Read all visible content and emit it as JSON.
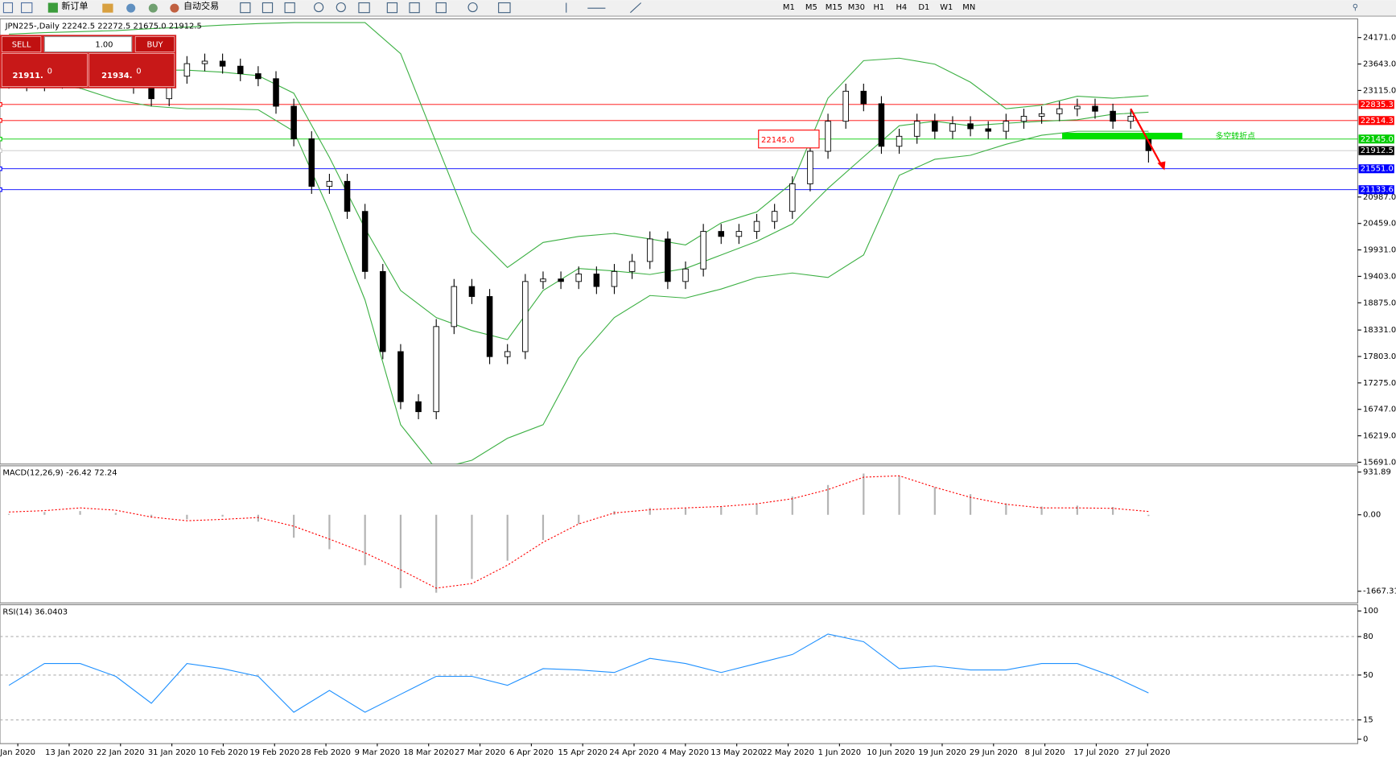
{
  "toolbar": {
    "new_order": "新订单",
    "auto_trading": "自动交易",
    "timeframes": [
      "M1",
      "M5",
      "M15",
      "M30",
      "H1",
      "H4",
      "D1",
      "W1",
      "MN"
    ]
  },
  "chart_header": "JPN225-,Daily  22242.5 22272.5 21675.0 21912.5",
  "trade_panel": {
    "sell": "SELL",
    "buy": "BUY",
    "lots": "1.00",
    "sell_main": "21911.",
    "sell_tail": "0",
    "buy_main": "21934.",
    "buy_tail": "0"
  },
  "price_chart": {
    "ylim": [
      15673,
      24527
    ],
    "yticks": [
      {
        "value": 24171,
        "label": "24171.0"
      },
      {
        "value": 23643,
        "label": "23643.0"
      },
      {
        "value": 23115,
        "label": "23115.0"
      },
      {
        "value": 20987,
        "label": "20987.0"
      },
      {
        "value": 20459,
        "label": "20459.0"
      },
      {
        "value": 19931,
        "label": "19931.0"
      },
      {
        "value": 19403,
        "label": "19403.0"
      },
      {
        "value": 18875,
        "label": "18875.0"
      },
      {
        "value": 18331,
        "label": "18331.0"
      },
      {
        "value": 17803,
        "label": "17803.0"
      },
      {
        "value": 17275,
        "label": "17275.0"
      },
      {
        "value": 16747,
        "label": "16747.0"
      },
      {
        "value": 16219,
        "label": "16219.0"
      },
      {
        "value": 15691,
        "label": "15691.0"
      }
    ],
    "levels": [
      {
        "value": 22835.3,
        "label": "22835.3",
        "color": "#ff0000",
        "line_color": "#ff0000"
      },
      {
        "value": 22514.3,
        "label": "22514.3",
        "color": "#ff0000",
        "line_color": "#ff0000"
      },
      {
        "value": 22145,
        "label": "22145.0",
        "color": "#00cc00",
        "line_color": "#00cc00"
      },
      {
        "value": 21912.5,
        "label": "21912.5",
        "color": "#000000",
        "line_color": "#c8c8c8"
      },
      {
        "value": 21551,
        "label": "21551.0",
        "color": "#0000ff",
        "line_color": "#0000ff"
      },
      {
        "value": 21133.6,
        "label": "21133.6",
        "color": "#0000ff",
        "line_color": "#0000ff"
      }
    ],
    "candles": {
      "open": [
        23350,
        23300,
        23250,
        23350,
        23300,
        23400,
        23450,
        23350,
        23200,
        22950,
        23400,
        23650,
        23700,
        23600,
        23450,
        23350,
        22800,
        22150,
        21200,
        21300,
        20700,
        19500,
        17900,
        16900,
        16700,
        18400,
        19200,
        19000,
        17800,
        17900,
        19300,
        19350,
        19300,
        19450,
        19200,
        19500,
        19700,
        20150,
        19300,
        19550,
        20300,
        20200,
        20300,
        20500,
        20700,
        21250,
        21900,
        22500,
        23100,
        22850,
        22000,
        22200,
        22500,
        22300,
        22450,
        22350,
        22300,
        22500,
        22600,
        22650,
        22750,
        22800,
        22700,
        22500,
        22242.5
      ],
      "high": [
        23500,
        23450,
        23500,
        23500,
        23550,
        23600,
        23600,
        23500,
        23350,
        23550,
        23800,
        23850,
        23850,
        23750,
        23600,
        23500,
        22950,
        22300,
        21450,
        21450,
        20850,
        19650,
        18050,
        17050,
        18550,
        19350,
        19350,
        19150,
        18050,
        19450,
        19500,
        19500,
        19600,
        19600,
        19650,
        19850,
        20300,
        20300,
        19700,
        20450,
        20450,
        20450,
        20650,
        20850,
        21400,
        22050,
        22650,
        23250,
        23250,
        23000,
        22350,
        22650,
        22650,
        22600,
        22600,
        22500,
        22650,
        22750,
        22800,
        22900,
        22950,
        22950,
        22850,
        22750,
        22272.5
      ],
      "low": [
        23150,
        23100,
        23100,
        23150,
        23150,
        23250,
        23200,
        23050,
        22800,
        22800,
        23250,
        23500,
        23450,
        23300,
        23200,
        22650,
        22000,
        21050,
        21050,
        20550,
        19350,
        17750,
        16750,
        16550,
        16550,
        18250,
        18850,
        17650,
        17650,
        17750,
        19150,
        19150,
        19150,
        19050,
        19050,
        19350,
        19550,
        19150,
        19150,
        19400,
        20050,
        20050,
        20150,
        20350,
        20550,
        21100,
        21750,
        22350,
        22700,
        21850,
        21850,
        22050,
        22150,
        22150,
        22200,
        22150,
        22150,
        22350,
        22450,
        22500,
        22600,
        22550,
        22350,
        22350,
        21675
      ],
      "close": [
        23300,
        23250,
        23350,
        23300,
        23400,
        23450,
        23350,
        23200,
        22950,
        23400,
        23650,
        23700,
        23600,
        23450,
        23350,
        22800,
        22150,
        21200,
        21300,
        20700,
        19500,
        17900,
        16900,
        16700,
        18400,
        19200,
        19000,
        17800,
        17900,
        19300,
        19350,
        19300,
        19450,
        19200,
        19500,
        19700,
        20150,
        19300,
        19550,
        20300,
        20200,
        20300,
        20500,
        20700,
        21250,
        21900,
        22500,
        23100,
        22850,
        22000,
        22200,
        22500,
        22300,
        22450,
        22350,
        22300,
        22500,
        22600,
        22650,
        22750,
        22800,
        22700,
        22500,
        22600,
        21912.5
      ]
    },
    "bands": {
      "color": "#3cb043",
      "upper": [
        24240,
        24270,
        24290,
        24310,
        24350,
        24380,
        24420,
        24450,
        24470,
        24470,
        24470,
        23850,
        22070,
        20290,
        19580,
        20080,
        20200,
        20260,
        20150,
        20030,
        20470,
        20690,
        21270,
        22960,
        23710,
        23760,
        23640,
        23280,
        22750,
        22820,
        23000,
        22960,
        23010
      ],
      "middle": [
        23640,
        23600,
        23590,
        23550,
        23520,
        23520,
        23480,
        23410,
        23060,
        21780,
        20360,
        19120,
        18580,
        18320,
        18140,
        19120,
        19560,
        19510,
        19440,
        19560,
        19830,
        20100,
        20450,
        21160,
        21790,
        22410,
        22500,
        22410,
        22460,
        22500,
        22530,
        22640,
        22680
      ],
      "lower": [
        23290,
        23230,
        23160,
        22930,
        22800,
        22750,
        22750,
        22730,
        22300,
        20700,
        18930,
        16440,
        15550,
        15730,
        16170,
        16440,
        17770,
        18580,
        19020,
        18970,
        19150,
        19380,
        19470,
        19380,
        19830,
        21420,
        21740,
        21820,
        22040,
        22220,
        22300,
        22300,
        22300
      ]
    },
    "annotation": {
      "label": "22145.0",
      "value": 22145
    },
    "note": "多空转折点"
  },
  "macd": {
    "label": "MACD(12,26,9) -26.42 72.24",
    "ylim": [
      -1903,
      1029
    ],
    "yticks": [
      931.89,
      {
        "value": 0,
        "label": "0.00"
      },
      -1667.31
    ],
    "histogram": [
      20,
      60,
      80,
      40,
      -60,
      -100,
      -40,
      -150,
      -500,
      -750,
      -1100,
      -1600,
      -1700,
      -1400,
      -1000,
      -550,
      -200,
      80,
      150,
      140,
      170,
      230,
      400,
      650,
      900,
      850,
      600,
      450,
      250,
      180,
      200,
      170,
      -26.42
    ],
    "signal": [
      60,
      90,
      150,
      100,
      -50,
      -130,
      -100,
      -60,
      -250,
      -530,
      -830,
      -1200,
      -1600,
      -1500,
      -1100,
      -600,
      -200,
      40,
      110,
      150,
      180,
      240,
      350,
      550,
      820,
      850,
      600,
      380,
      230,
      150,
      150,
      140,
      72.24
    ],
    "histogram_color": "#b4b4b4",
    "signal_color": "#ff0000"
  },
  "rsi": {
    "label": "RSI(14) 36.0403",
    "ylim": [
      0,
      100
    ],
    "yticks": [
      100,
      80,
      50,
      15,
      0
    ],
    "levels": [
      80,
      50,
      15
    ],
    "values": [
      42,
      59,
      59,
      49,
      28,
      59,
      55,
      49,
      21,
      38,
      21,
      35,
      49,
      49,
      42,
      55,
      54,
      52,
      63,
      59,
      52,
      59,
      66,
      82,
      76,
      55,
      57,
      54,
      54,
      59,
      59,
      49,
      36.0403
    ],
    "color": "#1e90ff"
  },
  "dates": [
    "Jan 2020",
    "13 Jan 2020",
    "22 Jan 2020",
    "31 Jan 2020",
    "10 Feb 2020",
    "19 Feb 2020",
    "28 Feb 2020",
    "9 Mar 2020",
    "18 Mar 2020",
    "27 Mar 2020",
    "6 Apr 2020",
    "15 Apr 2020",
    "24 Apr 2020",
    "4 May 2020",
    "13 May 2020",
    "22 May 2020",
    "1 Jun 2020",
    "10 Jun 2020",
    "19 Jun 2020",
    "29 Jun 2020",
    "8 Jul 2020",
    "17 Jul 2020",
    "27 Jul 2020"
  ]
}
